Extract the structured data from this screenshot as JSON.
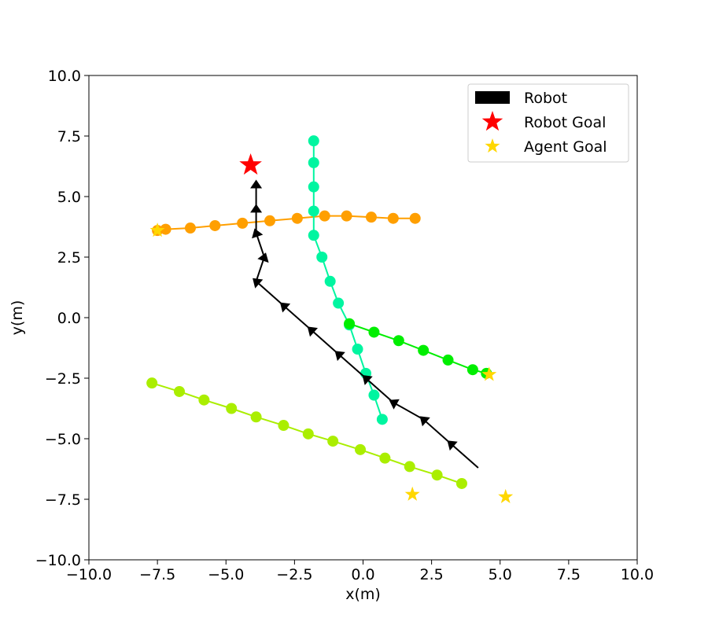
{
  "chart_data": {
    "type": "line",
    "title": "",
    "xlabel": "x(m)",
    "ylabel": "y(m)",
    "xlim": [
      -10,
      10
    ],
    "ylim": [
      -10,
      10
    ],
    "xticks": [
      -10,
      -7.5,
      -5,
      -2.5,
      0,
      2.5,
      5,
      7.5,
      10
    ],
    "yticks": [
      -10,
      -7.5,
      -5,
      -2.5,
      0,
      2.5,
      5,
      7.5,
      10
    ],
    "xtick_labels": [
      "−10.0",
      "−7.5",
      "−5.0",
      "−2.5",
      "0.0",
      "2.5",
      "5.0",
      "7.5",
      "10.0"
    ],
    "ytick_labels": [
      "−10.0",
      "−7.5",
      "−5.0",
      "−2.5",
      "0.0",
      "2.5",
      "5.0",
      "7.5",
      "10.0"
    ],
    "grid": false,
    "legend_position": "top-right",
    "legend": [
      {
        "label": "Robot",
        "marker": "black-arrow-patch"
      },
      {
        "label": "Robot Goal",
        "marker": "red-star"
      },
      {
        "label": "Agent Goal",
        "marker": "gold-star"
      }
    ],
    "robot": {
      "color": "#000000",
      "x": [
        4.2,
        3.2,
        2.2,
        1.1,
        0.1,
        -0.9,
        -1.9,
        -2.9,
        -3.9,
        -3.6,
        -3.9,
        -3.9,
        -3.9
      ],
      "y": [
        -6.2,
        -5.2,
        -4.2,
        -3.5,
        -2.5,
        -1.5,
        -0.5,
        0.5,
        1.5,
        2.5,
        3.5,
        4.5,
        5.5
      ]
    },
    "robot_goal": {
      "x": -4.1,
      "y": 6.3,
      "color": "#ff0000"
    },
    "agents": [
      {
        "color": "#ff9f00",
        "x": [
          1.9,
          1.1,
          0.3,
          -0.6,
          -1.4,
          -2.4,
          -3.4,
          -4.4,
          -5.4,
          -6.3,
          -7.2,
          -7.5
        ],
        "y": [
          4.1,
          4.1,
          4.15,
          4.2,
          4.2,
          4.1,
          4.0,
          3.9,
          3.8,
          3.7,
          3.65,
          3.6
        ]
      },
      {
        "color": "#00f5a0",
        "x": [
          -1.8,
          -1.8,
          -1.8,
          -1.8,
          -1.8,
          -1.5,
          -1.2,
          -0.9,
          -0.5,
          -0.2,
          0.1,
          0.4,
          0.7
        ],
        "y": [
          7.3,
          6.4,
          5.4,
          4.4,
          3.4,
          2.5,
          1.5,
          0.6,
          -0.3,
          -1.3,
          -2.3,
          -3.2,
          -4.2
        ]
      },
      {
        "color": "#00ee00",
        "x": [
          -0.5,
          0.4,
          1.3,
          2.2,
          3.1,
          4.0,
          4.5
        ],
        "y": [
          -0.25,
          -0.6,
          -0.95,
          -1.35,
          -1.75,
          -2.15,
          -2.3
        ]
      },
      {
        "color": "#aaee00",
        "x": [
          -7.7,
          -6.7,
          -5.8,
          -4.8,
          -3.9,
          -2.9,
          -2.0,
          -1.1,
          -0.1,
          0.8,
          1.7,
          2.7,
          3.6
        ],
        "y": [
          -2.7,
          -3.05,
          -3.4,
          -3.75,
          -4.1,
          -4.45,
          -4.8,
          -5.1,
          -5.45,
          -5.8,
          -6.15,
          -6.5,
          -6.85
        ]
      }
    ],
    "agent_goals": {
      "color": "#ffd700",
      "x": [
        -7.5,
        4.6,
        1.8,
        5.2
      ],
      "y": [
        3.6,
        -2.35,
        -7.3,
        -7.4
      ]
    }
  }
}
